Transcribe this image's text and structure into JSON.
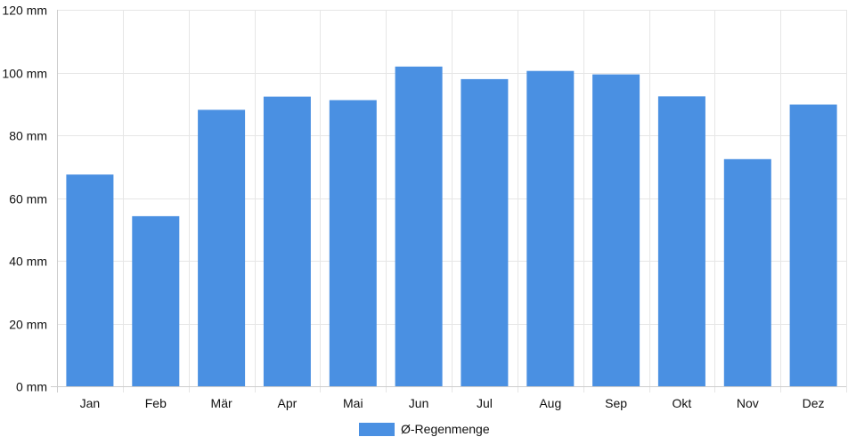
{
  "chart_data": {
    "type": "bar",
    "categories": [
      "Jan",
      "Feb",
      "Mär",
      "Apr",
      "Mai",
      "Jun",
      "Jul",
      "Aug",
      "Sep",
      "Okt",
      "Nov",
      "Dez"
    ],
    "series": [
      {
        "name": "Ø-Regenmenge",
        "values": [
          67.5,
          54.2,
          88.1,
          92.3,
          91.2,
          101.9,
          97.9,
          100.5,
          99.4,
          92.4,
          72.4,
          89.8
        ]
      }
    ],
    "ylim": [
      0,
      120
    ],
    "yticks": [
      0,
      20,
      40,
      60,
      80,
      100,
      120
    ],
    "ytick_suffix": " mm",
    "grid": true,
    "legend": "bottom-center"
  },
  "colors": {
    "bar": "#4a90e2",
    "grid": "#e6e6e6",
    "axis": "#cccccc"
  }
}
